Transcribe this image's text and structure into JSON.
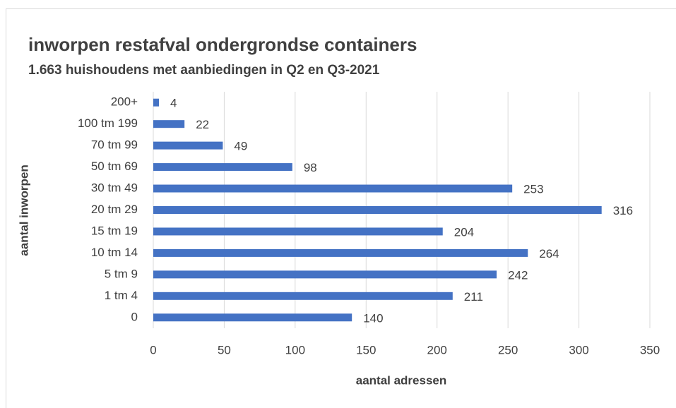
{
  "chart_data": {
    "type": "bar",
    "orientation": "horizontal",
    "title": "inworpen restafval ondergrondse containers",
    "subtitle": "1.663 huishoudens  met aanbiedingen in Q2 en Q3-2021",
    "x_label": "aantal  adressen",
    "y_label": "aantal inworpen",
    "categories": [
      "0",
      "1 tm 4",
      "5 tm 9",
      "10 tm 14",
      "15 tm 19",
      "20 tm 29",
      "30 tm 49",
      "50 tm 69",
      "70 tm 99",
      "100 tm 199",
      "200+"
    ],
    "values": [
      140,
      211,
      242,
      264,
      204,
      316,
      253,
      98,
      49,
      22,
      4
    ],
    "color": "#4472c4",
    "xlim": [
      0,
      350
    ],
    "xticks": [
      0,
      50,
      100,
      150,
      200,
      250,
      300,
      350
    ],
    "grid": true
  }
}
